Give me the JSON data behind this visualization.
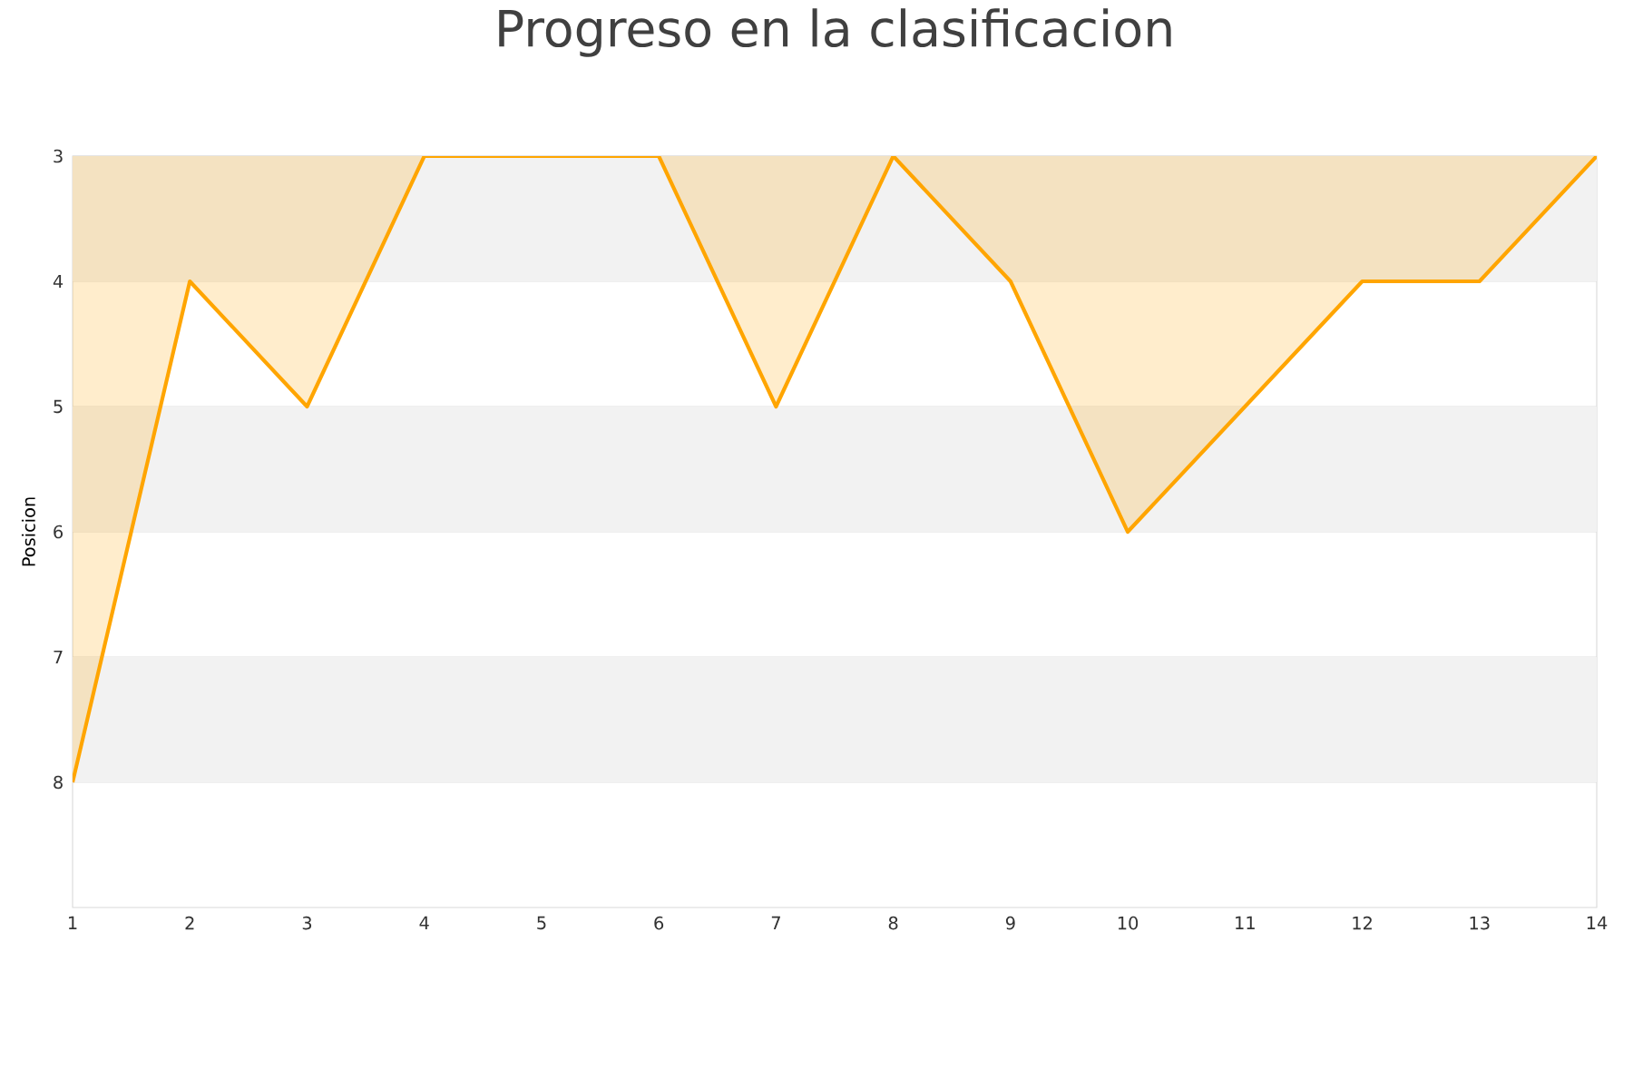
{
  "chart_data": {
    "type": "area",
    "title": "Progreso en la clasificacion",
    "ylabel": "Posicion",
    "x": [
      1,
      2,
      3,
      4,
      5,
      6,
      7,
      8,
      9,
      10,
      11,
      12,
      13,
      14
    ],
    "series": [
      {
        "color": "#ffa500",
        "values": [
          8,
          4,
          5,
          3,
          3,
          3,
          5,
          3,
          4,
          6,
          5,
          4,
          4,
          3
        ]
      }
    ],
    "xlim": [
      1,
      14
    ],
    "xticks": [
      1,
      2,
      3,
      4,
      5,
      6,
      7,
      8,
      9,
      10,
      11,
      12,
      13,
      14
    ],
    "ylim": [
      9,
      3
    ],
    "yticks": [
      3,
      4,
      5,
      6,
      7,
      8
    ],
    "grid": "y",
    "bands": [
      {
        "axis": "y",
        "from": 3,
        "to": 4,
        "color": "#f2f2f2"
      },
      {
        "axis": "y",
        "from": 5,
        "to": 6,
        "color": "#f2f2f2"
      },
      {
        "axis": "y",
        "from": 7,
        "to": 8,
        "color": "#f2f2f2"
      }
    ]
  }
}
